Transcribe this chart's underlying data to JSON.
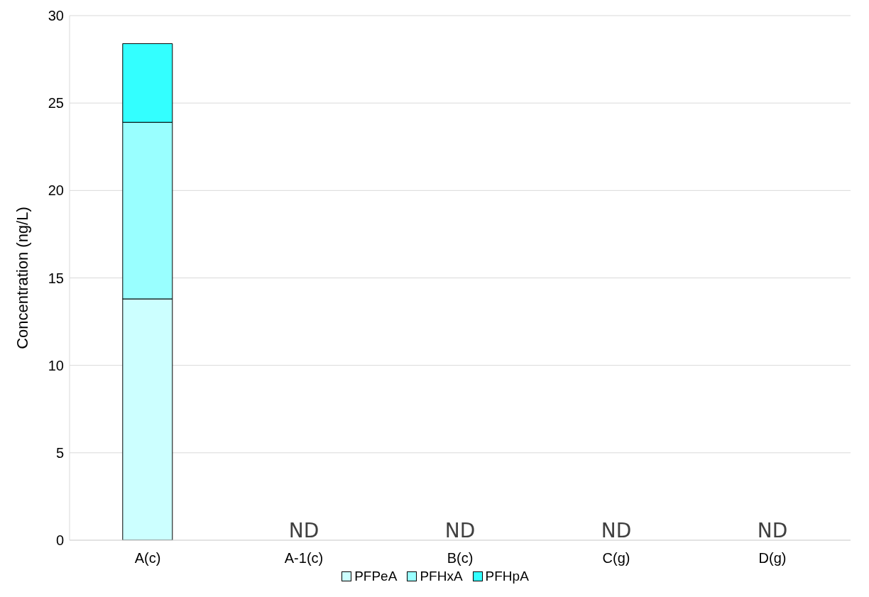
{
  "chart_data": {
    "type": "bar",
    "stacked": true,
    "ylabel": "Concentration (ng/L)",
    "categories": [
      "A(c)",
      "A-1(c)",
      "B(c)",
      "C(g)",
      "D(g)"
    ],
    "series": [
      {
        "name": "PFPeA",
        "color": "#ccffff",
        "values": [
          13.8,
          null,
          null,
          null,
          null
        ]
      },
      {
        "name": "PFHxA",
        "color": "#99ffff",
        "values": [
          10.1,
          null,
          null,
          null,
          null
        ]
      },
      {
        "name": "PFHpA",
        "color": "#33ffff",
        "values": [
          4.5,
          null,
          null,
          null,
          null
        ]
      }
    ],
    "ylim": [
      0,
      30
    ],
    "yticks": [
      0,
      5,
      10,
      15,
      20,
      25,
      30
    ],
    "grid": "y",
    "legend": "bottom",
    "annotations": [
      "ND",
      "ND",
      "ND",
      "ND"
    ]
  }
}
